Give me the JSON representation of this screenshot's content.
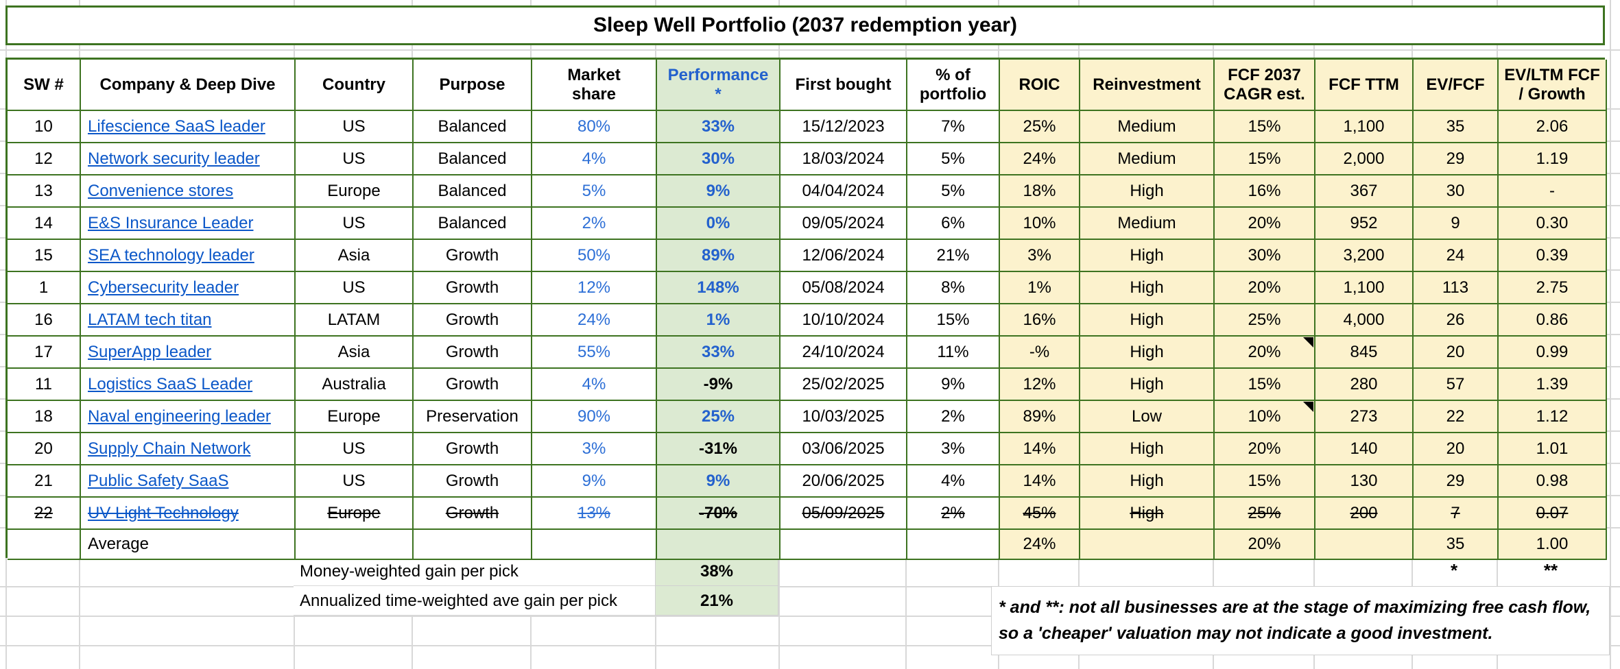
{
  "title": "Sleep Well Portfolio (2037 redemption year)",
  "colors": {
    "table_border_green": "#3d7320",
    "performance_bg_green": "#dcead2",
    "metrics_bg_yellow": "#fcf2cd",
    "hyperlink_blue": "#0b57c8",
    "value_blue": "#2d6fd6",
    "gridline_gray": "#d8d8d8"
  },
  "columns": [
    {
      "key": "sw",
      "label": "SW #"
    },
    {
      "key": "company",
      "label": "Company & Deep Dive"
    },
    {
      "key": "country",
      "label": "Country"
    },
    {
      "key": "purpose",
      "label": "Purpose"
    },
    {
      "key": "market_share",
      "label": "Market\nshare"
    },
    {
      "key": "performance",
      "label": "Performance\n*"
    },
    {
      "key": "first_bought",
      "label": "First bought"
    },
    {
      "key": "pct_portfolio",
      "label": "% of\nportfolio"
    },
    {
      "key": "roic",
      "label": "ROIC"
    },
    {
      "key": "reinvestment",
      "label": "Reinvestment"
    },
    {
      "key": "fcf_cagr",
      "label": "FCF 2037\nCAGR est."
    },
    {
      "key": "fcf_ttm",
      "label": "FCF TTM"
    },
    {
      "key": "ev_fcf",
      "label": "EV/FCF"
    },
    {
      "key": "ev_ltm",
      "label": "EV/LTM FCF\n/ Growth"
    }
  ],
  "rows": [
    {
      "sw": "10",
      "company": "Lifescience SaaS leader",
      "country": "US",
      "purpose": "Balanced",
      "market_share": "80%",
      "performance": "33%",
      "neg": false,
      "first_bought": "15/12/2023",
      "pct_portfolio": "7%",
      "roic": "25%",
      "reinvestment": "Medium",
      "fcf_cagr": "15%",
      "fcf_ttm": "1,100",
      "ev_fcf": "35",
      "ev_ltm": "2.06",
      "strike": false,
      "comment": false
    },
    {
      "sw": "12",
      "company": "Network security leader",
      "country": "US",
      "purpose": "Balanced",
      "market_share": "4%",
      "performance": "30%",
      "neg": false,
      "first_bought": "18/03/2024",
      "pct_portfolio": "5%",
      "roic": "24%",
      "reinvestment": "Medium",
      "fcf_cagr": "15%",
      "fcf_ttm": "2,000",
      "ev_fcf": "29",
      "ev_ltm": "1.19",
      "strike": false,
      "comment": false
    },
    {
      "sw": "13",
      "company": "Convenience stores",
      "country": "Europe",
      "purpose": "Balanced",
      "market_share": "5%",
      "performance": "9%",
      "neg": false,
      "first_bought": "04/04/2024",
      "pct_portfolio": "5%",
      "roic": "18%",
      "reinvestment": "High",
      "fcf_cagr": "16%",
      "fcf_ttm": "367",
      "ev_fcf": "30",
      "ev_ltm": "-",
      "strike": false,
      "comment": false
    },
    {
      "sw": "14",
      "company": "E&S Insurance Leader",
      "country": "US",
      "purpose": "Balanced",
      "market_share": "2%",
      "performance": "0%",
      "neg": false,
      "first_bought": "09/05/2024",
      "pct_portfolio": "6%",
      "roic": "10%",
      "reinvestment": "Medium",
      "fcf_cagr": "20%",
      "fcf_ttm": "952",
      "ev_fcf": "9",
      "ev_ltm": "0.30",
      "strike": false,
      "comment": false
    },
    {
      "sw": "15",
      "company": "SEA technology leader",
      "country": "Asia",
      "purpose": "Growth",
      "market_share": "50%",
      "performance": "89%",
      "neg": false,
      "first_bought": "12/06/2024",
      "pct_portfolio": "21%",
      "roic": "3%",
      "reinvestment": "High",
      "fcf_cagr": "30%",
      "fcf_ttm": "3,200",
      "ev_fcf": "24",
      "ev_ltm": "0.39",
      "strike": false,
      "comment": false
    },
    {
      "sw": "1",
      "company": "Cybersecurity leader",
      "country": "US",
      "purpose": "Growth",
      "market_share": "12%",
      "performance": "148%",
      "neg": false,
      "first_bought": "05/08/2024",
      "pct_portfolio": "8%",
      "roic": "1%",
      "reinvestment": "High",
      "fcf_cagr": "20%",
      "fcf_ttm": "1,100",
      "ev_fcf": "113",
      "ev_ltm": "2.75",
      "strike": false,
      "comment": false
    },
    {
      "sw": "16",
      "company": "LATAM tech titan",
      "country": "LATAM",
      "purpose": "Growth",
      "market_share": "24%",
      "performance": "1%",
      "neg": false,
      "first_bought": "10/10/2024",
      "pct_portfolio": "15%",
      "roic": "16%",
      "reinvestment": "High",
      "fcf_cagr": "25%",
      "fcf_ttm": "4,000",
      "ev_fcf": "26",
      "ev_ltm": "0.86",
      "strike": false,
      "comment": false
    },
    {
      "sw": "17",
      "company": "SuperApp leader",
      "country": "Asia",
      "purpose": "Growth",
      "market_share": "55%",
      "performance": "33%",
      "neg": false,
      "first_bought": "24/10/2024",
      "pct_portfolio": "11%",
      "roic": "-%",
      "reinvestment": "High",
      "fcf_cagr": "20%",
      "fcf_ttm": "845",
      "ev_fcf": "20",
      "ev_ltm": "0.99",
      "strike": false,
      "comment": true
    },
    {
      "sw": "11",
      "company": "Logistics SaaS Leader",
      "country": "Australia",
      "purpose": "Growth",
      "market_share": "4%",
      "performance": "-9%",
      "neg": true,
      "first_bought": "25/02/2025",
      "pct_portfolio": "9%",
      "roic": "12%",
      "reinvestment": "High",
      "fcf_cagr": "15%",
      "fcf_ttm": "280",
      "ev_fcf": "57",
      "ev_ltm": "1.39",
      "strike": false,
      "comment": false
    },
    {
      "sw": "18",
      "company": "Naval engineering leader",
      "country": "Europe",
      "purpose": "Preservation",
      "market_share": "90%",
      "performance": "25%",
      "neg": false,
      "first_bought": "10/03/2025",
      "pct_portfolio": "2%",
      "roic": "89%",
      "reinvestment": "Low",
      "fcf_cagr": "10%",
      "fcf_ttm": "273",
      "ev_fcf": "22",
      "ev_ltm": "1.12",
      "strike": false,
      "comment": true
    },
    {
      "sw": "20",
      "company": "Supply Chain Network",
      "country": "US",
      "purpose": "Growth",
      "market_share": "3%",
      "performance": "-31%",
      "neg": true,
      "first_bought": "03/06/2025",
      "pct_portfolio": "3%",
      "roic": "14%",
      "reinvestment": "High",
      "fcf_cagr": "20%",
      "fcf_ttm": "140",
      "ev_fcf": "20",
      "ev_ltm": "1.01",
      "strike": false,
      "comment": false
    },
    {
      "sw": "21",
      "company": "Public Safety SaaS",
      "country": "US",
      "purpose": "Growth",
      "market_share": "9%",
      "performance": "9%",
      "neg": false,
      "first_bought": "20/06/2025",
      "pct_portfolio": "4%",
      "roic": "14%",
      "reinvestment": "High",
      "fcf_cagr": "15%",
      "fcf_ttm": "130",
      "ev_fcf": "29",
      "ev_ltm": "0.98",
      "strike": false,
      "comment": false
    },
    {
      "sw": "22",
      "company": "UV Light Technology",
      "country": "Europe",
      "purpose": "Growth",
      "market_share": "13%",
      "performance": "-70%",
      "neg": true,
      "first_bought": "05/09/2025",
      "pct_portfolio": "2%",
      "roic": "45%",
      "reinvestment": "High",
      "fcf_cagr": "25%",
      "fcf_ttm": "200",
      "ev_fcf": "7",
      "ev_ltm": "0.07",
      "strike": true,
      "comment": false
    }
  ],
  "average_row": {
    "label": "Average",
    "roic": "24%",
    "fcf_cagr": "20%",
    "ev_fcf": "35",
    "ev_ltm": "1.00"
  },
  "summary": {
    "money_label": "Money-weighted gain per pick",
    "money_value": "38%",
    "annualized_label": "Annualized time-weighted ave gain per pick",
    "annualized_value": "21%",
    "star": "*",
    "double_star": "**"
  },
  "footnote": {
    "line1": "* and **: not all businesses are at the stage of maximizing free cash flow,",
    "line2": "so a 'cheaper' valuation may not indicate a good investment."
  }
}
